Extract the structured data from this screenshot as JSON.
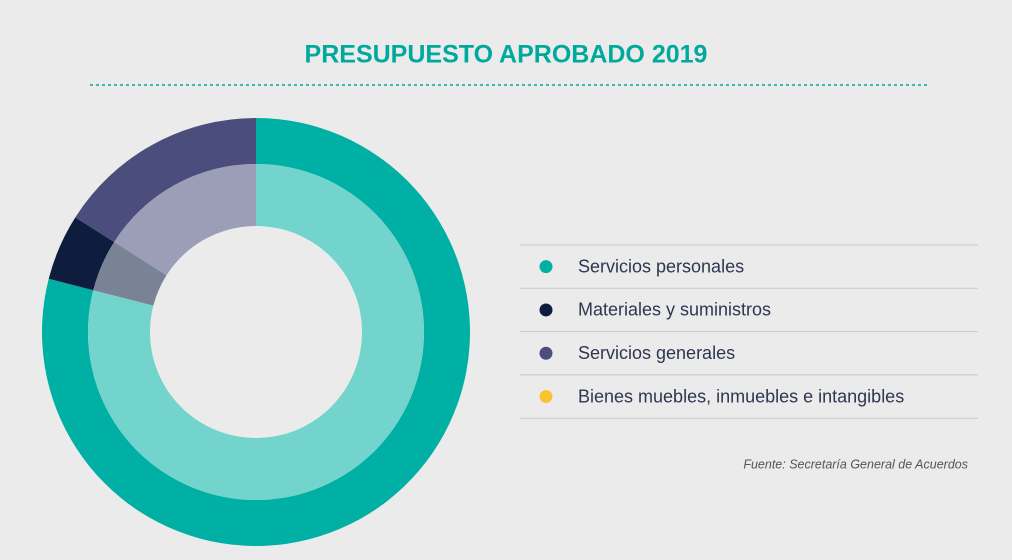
{
  "chart_data": {
    "type": "donut",
    "title": "PRESUPUESTO APROBADO 2019",
    "categories": [
      "Servicios personales",
      "Materiales y suministros",
      "Servicios generales",
      "Bienes muebles, inmuebles e intangibles"
    ],
    "values": [
      79,
      5,
      16,
      0
    ],
    "colors": [
      "#00b0a5",
      "#0e1d3e",
      "#4b4d7c",
      "#f7c531"
    ],
    "legend": "right",
    "source": "Fuente: Secretaría General de Acuerdos"
  }
}
